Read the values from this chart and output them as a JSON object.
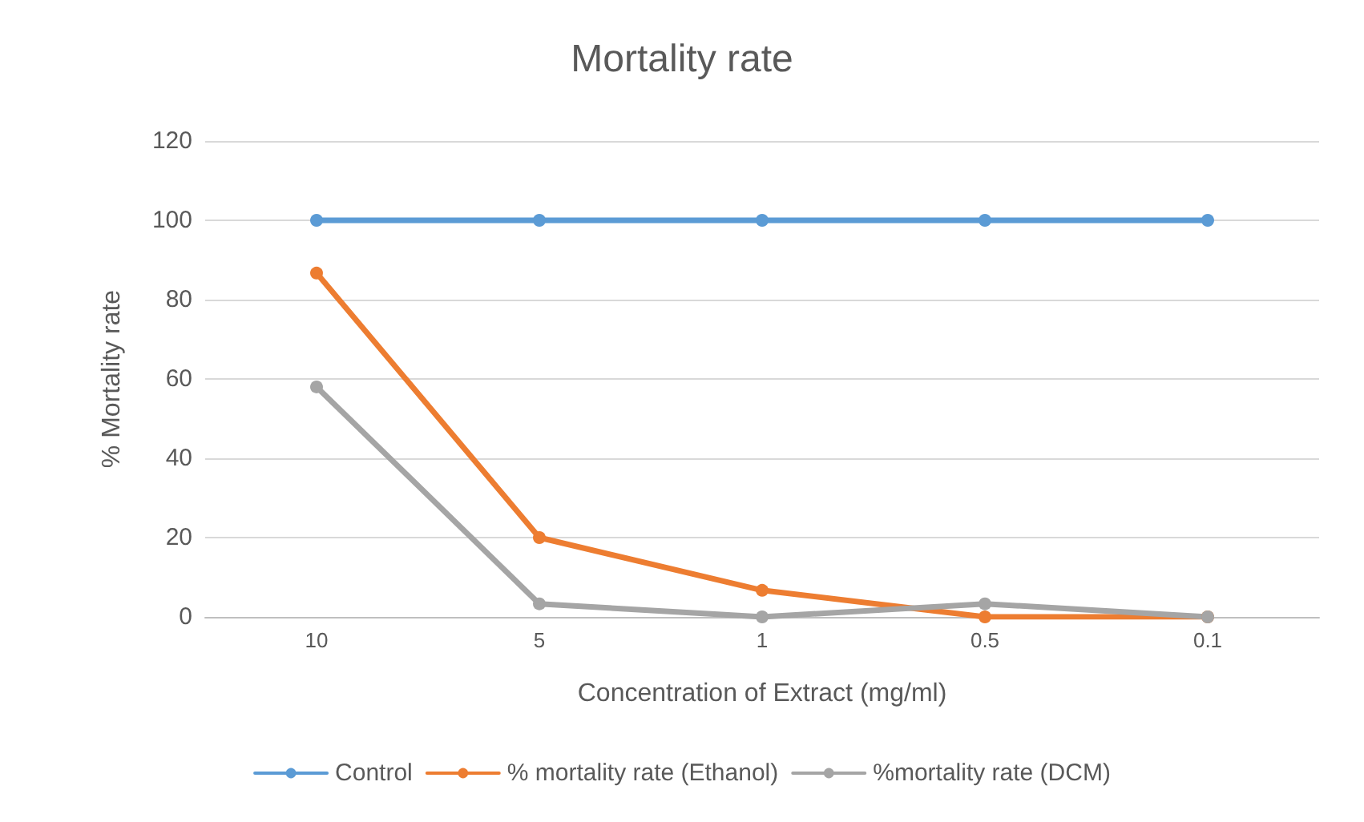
{
  "chart_data": {
    "type": "line",
    "title": "Mortality rate",
    "xlabel": "Concentration of Extract (mg/ml)",
    "ylabel": "% Mortality rate",
    "categories": [
      "10",
      "5",
      "1",
      "0.5",
      "0.1"
    ],
    "series": [
      {
        "name": "Control",
        "color": "#5b9bd5",
        "values": [
          100,
          100,
          100,
          100,
          100
        ]
      },
      {
        "name": "% mortality rate (Ethanol)",
        "color": "#ed7d31",
        "values": [
          86.7,
          20,
          6.7,
          0,
          0
        ]
      },
      {
        "name": "%mortality rate (DCM)",
        "color": "#a5a5a5",
        "values": [
          58,
          3.3,
          0,
          3.3,
          0
        ]
      }
    ],
    "ylim": [
      0,
      120
    ],
    "yticks": [
      0,
      20,
      40,
      60,
      80,
      100,
      120
    ],
    "grid": "y",
    "legend": "bottom",
    "marker": "circle",
    "line_style": "solid"
  }
}
